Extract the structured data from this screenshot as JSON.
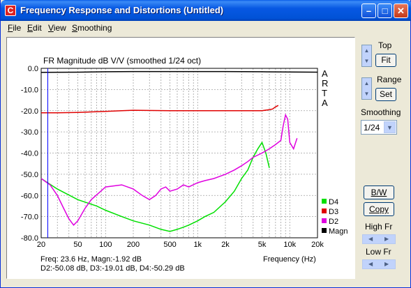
{
  "window": {
    "title": "Frequency Response and Distortions (Untitled)",
    "icon_letter": "C"
  },
  "menu": [
    {
      "label": "File",
      "ul": "F",
      "rest": "ile"
    },
    {
      "label": "Edit",
      "ul": "E",
      "rest": "dit"
    },
    {
      "label": "View",
      "ul": "V",
      "rest": "iew"
    },
    {
      "label": "Smoothing",
      "ul": "S",
      "rest": "moothing"
    }
  ],
  "controls": {
    "top_label": "Top",
    "fit_button": "Fit",
    "range_label": "Range",
    "set_button": "Set",
    "smoothing_label": "Smoothing",
    "smoothing_value": "1/24",
    "bw_button": "B/W",
    "copy_button": "Copy",
    "high_fr_label": "High Fr",
    "low_fr_label": "Low Fr"
  },
  "chart_data": {
    "type": "line",
    "title": "FR Magnitude dB V/V (smoothed 1/24 oct)",
    "watermark": "ARTA",
    "xlabel": "Frequency (Hz)",
    "x_scale": "log",
    "xlim": [
      20,
      20000
    ],
    "ylim": [
      -80,
      0
    ],
    "x_ticks": [
      "20",
      "50",
      "100",
      "200",
      "500",
      "1k",
      "2k",
      "5k",
      "10k",
      "20k"
    ],
    "y_ticks": [
      "0.0",
      "-10.0",
      "-20.0",
      "-30.0",
      "-40.0",
      "-50.0",
      "-60.0",
      "-70.0",
      "-80.0"
    ],
    "grid": true,
    "legend_position": "bottom-right",
    "cursor": {
      "freq": 23.6
    },
    "readout_line1": "Freq: 23.6 Hz, Magn:-1.92 dB",
    "readout_line2": "D2:-50.08 dB, D3:-19.01 dB, D4:-50.29 dB",
    "series": [
      {
        "name": "D4",
        "color": "#00e000",
        "x": [
          20,
          30,
          50,
          80,
          100,
          150,
          200,
          300,
          400,
          500,
          600,
          700,
          800,
          1000,
          1200,
          1500,
          2000,
          2500,
          3000,
          3500,
          4000,
          4500,
          5000,
          5500,
          6000
        ],
        "y": [
          -52,
          -57,
          -62,
          -65,
          -67,
          -70,
          -72,
          -74,
          -76,
          -77,
          -76,
          -75,
          -74,
          -72,
          -70,
          -68,
          -63,
          -58,
          -52,
          -48,
          -42,
          -38,
          -35,
          -40,
          -47
        ]
      },
      {
        "name": "D3",
        "color": "#e00000",
        "x": [
          20,
          30,
          50,
          100,
          150,
          200,
          500,
          1000,
          2000,
          5000,
          6000,
          6500,
          7000,
          7500
        ],
        "y": [
          -21,
          -21,
          -20.8,
          -20.3,
          -20,
          -19.8,
          -20,
          -20,
          -20,
          -20,
          -19.5,
          -19.2,
          -18.2,
          -17.5
        ]
      },
      {
        "name": "D2",
        "color": "#e000e0",
        "x": [
          20,
          25,
          30,
          35,
          40,
          45,
          50,
          60,
          70,
          100,
          150,
          200,
          250,
          300,
          350,
          400,
          450,
          500,
          600,
          700,
          800,
          1000,
          1200,
          1500,
          2000,
          2500,
          3000,
          3500,
          4000,
          5000,
          6000,
          7000,
          8000,
          8500,
          9000,
          9500,
          10000,
          11000,
          12000
        ],
        "y": [
          -52,
          -55,
          -60,
          -66,
          -71,
          -74,
          -72,
          -66,
          -62,
          -56,
          -55,
          -57,
          -60,
          -62,
          -60,
          -57,
          -56,
          -58,
          -57,
          -55,
          -56,
          -54,
          -53,
          -52,
          -50,
          -48,
          -46,
          -44,
          -42,
          -40,
          -38,
          -36,
          -34,
          -27,
          -22,
          -24,
          -35,
          -38,
          -33
        ]
      },
      {
        "name": "Magn",
        "color": "#000000",
        "x": [
          20,
          50,
          100,
          200,
          500,
          1000,
          2000,
          5000,
          10000,
          20000
        ],
        "y": [
          -1.9,
          -1.8,
          -1.6,
          -1.5,
          -1.5,
          -1.5,
          -1.5,
          -1.6,
          -1.7,
          -1.8
        ]
      }
    ]
  }
}
